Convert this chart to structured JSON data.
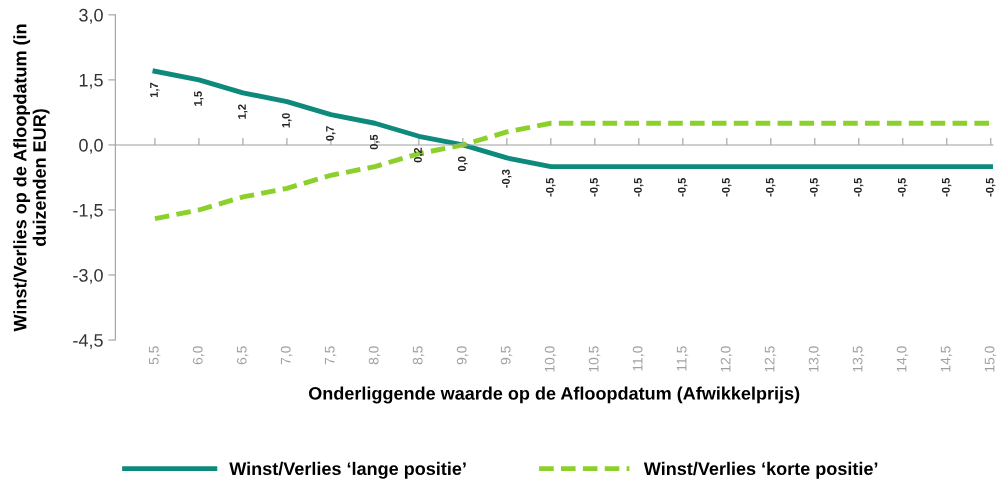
{
  "chart_data": {
    "type": "line",
    "xlabel": "Onderliggende waarde op de Afloopdatum (Afwikkelprijs)",
    "ylabel": "Winst/Verlies op de Afloopdatum (in duizenden EUR)",
    "categories": [
      "5,5",
      "6,0",
      "6,5",
      "7,0",
      "7,5",
      "8,0",
      "8,5",
      "9,0",
      "9,5",
      "10,0",
      "10,5",
      "11,0",
      "11,5",
      "12,0",
      "12,5",
      "13,0",
      "13,5",
      "14,0",
      "14,5",
      "15,0"
    ],
    "series": [
      {
        "name": "Winst/Verlies ‘lange positie’",
        "color": "#0e8a7c",
        "line_style": "solid",
        "values": [
          1.7,
          1.5,
          1.2,
          1.0,
          0.7,
          0.5,
          0.2,
          0.0,
          -0.3,
          -0.5,
          -0.5,
          -0.5,
          -0.5,
          -0.5,
          -0.5,
          -0.5,
          -0.5,
          -0.5,
          -0.5,
          -0.5
        ],
        "value_labels": [
          "1,7",
          "1,5",
          "1,2",
          "1,0",
          "0,7",
          "0,5",
          "0,2",
          "0,0",
          "-0,3",
          "-0,5",
          "-0,5",
          "-0,5",
          "-0,5",
          "-0,5",
          "-0,5",
          "-0,5",
          "-0,5",
          "-0,5",
          "-0,5",
          "-0,5"
        ]
      },
      {
        "name": "Winst/Verlies ‘korte positie’",
        "color": "#8cd12b",
        "line_style": "dashed",
        "values": [
          -1.7,
          -1.5,
          -1.2,
          -1.0,
          -0.7,
          -0.5,
          -0.2,
          0.0,
          0.3,
          0.5,
          0.5,
          0.5,
          0.5,
          0.5,
          0.5,
          0.5,
          0.5,
          0.5,
          0.5,
          0.5
        ]
      }
    ],
    "ylim": [
      -4.5,
      3.0
    ],
    "yticks": [
      {
        "value": -4.5,
        "label": "-4,5"
      },
      {
        "value": -3.0,
        "label": "-3,0"
      },
      {
        "value": -1.5,
        "label": "-1,5"
      },
      {
        "value": 0.0,
        "label": "0,0"
      },
      {
        "value": 1.5,
        "label": "1,5"
      },
      {
        "value": 3.0,
        "label": "3,0"
      }
    ],
    "legend": "bottom",
    "marker": "none"
  }
}
